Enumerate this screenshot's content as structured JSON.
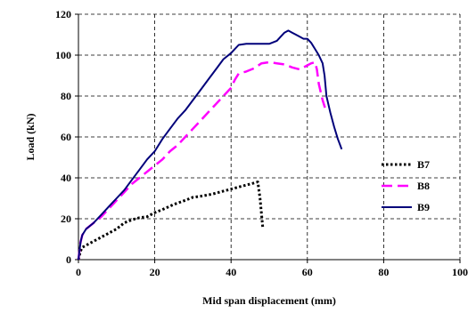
{
  "chart_data": {
    "type": "line",
    "title": "",
    "xlabel": "Mid span displacement (mm)",
    "ylabel": "Load (kN)",
    "xlim": [
      0,
      100
    ],
    "ylim": [
      0,
      120
    ],
    "xticks": [
      0,
      20,
      40,
      60,
      80,
      100
    ],
    "yticks": [
      0,
      20,
      40,
      60,
      80,
      100,
      120
    ],
    "grid": true,
    "grid_style": "dashed",
    "legend_position": "right",
    "series": [
      {
        "name": "B7",
        "color": "#000000",
        "dash": "dotted",
        "x": [
          0,
          0.5,
          1,
          3,
          5,
          8,
          10,
          12,
          14,
          16,
          18,
          20,
          22,
          25,
          28,
          30,
          32,
          35,
          38,
          40,
          42,
          44,
          46,
          47,
          47.6,
          48,
          48.3
        ],
        "y": [
          0,
          4,
          6,
          8,
          10,
          13,
          15,
          18,
          19.5,
          20.5,
          21,
          23,
          24.5,
          27,
          29,
          30.5,
          31,
          32,
          33.5,
          34.5,
          35.5,
          36.5,
          37.5,
          38,
          30,
          22,
          16
        ]
      },
      {
        "name": "B8",
        "color": "#ff00ff",
        "dash": "dashed",
        "x": [
          0,
          0.5,
          1,
          2,
          4,
          6,
          8,
          10,
          12,
          14,
          16,
          18,
          20,
          22,
          24,
          26,
          28,
          30,
          32,
          34,
          36,
          38,
          40,
          41,
          42,
          44,
          46,
          48,
          50,
          52,
          54,
          56,
          58,
          60,
          61,
          62,
          62.5,
          63,
          64,
          65
        ],
        "y": [
          0,
          8,
          12,
          15,
          18,
          21,
          25,
          29,
          33,
          37,
          40,
          43,
          46,
          49,
          53,
          56,
          60,
          64,
          68,
          72,
          76,
          80,
          84,
          88,
          91,
          92,
          93.5,
          96,
          96.5,
          96,
          95.5,
          94,
          93,
          95,
          96,
          96.5,
          93,
          86,
          78,
          72
        ]
      },
      {
        "name": "B9",
        "color": "#00007a",
        "dash": "solid",
        "x": [
          0,
          0.3,
          0.6,
          1,
          2,
          4,
          6,
          8,
          10,
          12,
          14,
          16,
          18,
          20,
          22,
          24,
          26,
          28,
          30,
          32,
          34,
          36,
          38,
          40,
          41,
          42,
          44,
          46,
          48,
          50,
          52,
          53,
          54,
          55,
          56,
          57,
          58,
          59,
          60,
          61,
          62,
          63,
          64,
          64.5,
          65,
          66,
          67,
          68,
          69
        ],
        "y": [
          0,
          5,
          9,
          12,
          15,
          18,
          22,
          26,
          30,
          34,
          39,
          44,
          49,
          53,
          59,
          64,
          69,
          73,
          78,
          83,
          88,
          93,
          98,
          101,
          103,
          105,
          105.5,
          105.5,
          105.5,
          105.5,
          107,
          109,
          111,
          112,
          111,
          110,
          109,
          108,
          108,
          106,
          103,
          100,
          96,
          90,
          80,
          72,
          65,
          59,
          54
        ]
      }
    ]
  }
}
